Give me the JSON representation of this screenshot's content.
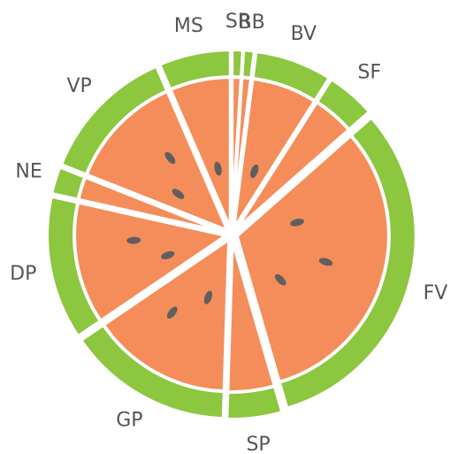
{
  "chart_data": {
    "type": "pie",
    "categories": [
      "SR",
      "BB",
      "BV",
      "SF",
      "FV",
      "SP",
      "GP",
      "DP",
      "NE",
      "VP",
      "MS"
    ],
    "values": [
      1,
      1,
      7,
      4.5,
      32,
      5,
      15,
      13,
      2.5,
      12.5,
      6.5
    ],
    "colors": {
      "rind": "#8dc63f",
      "flesh": "#f58d5a",
      "seed": "#5f5f5f"
    }
  }
}
